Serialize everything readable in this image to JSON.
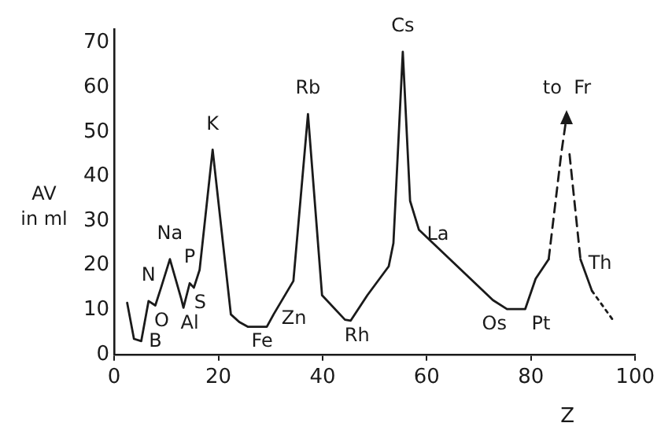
{
  "chart_data": {
    "type": "line",
    "xlabel": "Z",
    "ylabel": "AV in ml",
    "xlim": [
      0,
      100
    ],
    "ylim": [
      0,
      73
    ],
    "xticks": [
      0,
      20,
      40,
      60,
      80,
      100
    ],
    "yticks": [
      0,
      10,
      20,
      30,
      40,
      50,
      60,
      70
    ],
    "grid": false,
    "legend": false,
    "marker": "none",
    "series": [
      {
        "color": "#1a1a1a",
        "line_style": "solid",
        "x": [
          2.5,
          3.8,
          5.2,
          6.6,
          7.9,
          9,
          10.7,
          12.9,
          13.3,
          14.5,
          15.3,
          16.4,
          18.9,
          22.4,
          24,
          25.7,
          29.3,
          30.6,
          34.4,
          37.2,
          39.9,
          44.3,
          45.4,
          48.6,
          52.7,
          53.6,
          55.4,
          56.8,
          58.5,
          72.7,
          75.4,
          78.9,
          80.9,
          83.4
        ],
        "values": [
          11.6,
          3.5,
          3,
          12,
          11,
          15,
          21.4,
          12.4,
          10.5,
          16,
          15,
          19,
          46,
          9,
          7.3,
          6.2,
          6.2,
          9,
          16.5,
          54,
          13.3,
          7.8,
          7.6,
          13.3,
          19.8,
          25,
          68,
          34.5,
          28,
          12.2,
          10.2,
          10.2,
          17,
          21.4
        ]
      },
      {
        "color": "#1a1a1a",
        "line_style": "dashed",
        "x": [
          83.4,
          85.8,
          86.9
        ],
        "values": [
          21.4,
          45,
          54
        ]
      },
      {
        "color": "#1a1a1a",
        "line_style": "dashed",
        "x": [
          87.4,
          89.5
        ],
        "values": [
          45,
          21.4
        ]
      },
      {
        "color": "#1a1a1a",
        "line_style": "solid",
        "x": [
          89.5,
          91.7
        ],
        "values": [
          21.4,
          14.3
        ]
      },
      {
        "color": "#1a1a1a",
        "line_style": "dotted",
        "x": [
          91.7,
          96
        ],
        "values": [
          14.3,
          7.3
        ]
      }
    ],
    "annotations": [
      {
        "text": "Na",
        "x": 10.7,
        "y": 21.4
      },
      {
        "text": "N",
        "x": 6.6,
        "y": 12
      },
      {
        "text": "O",
        "x": 7.9,
        "y": 11
      },
      {
        "text": "Al",
        "x": 13.3,
        "y": 10.5
      },
      {
        "text": "B",
        "x": 5.2,
        "y": 3
      },
      {
        "text": "P",
        "x": 14.5,
        "y": 16
      },
      {
        "text": "S",
        "x": 15.3,
        "y": 15
      },
      {
        "text": "K",
        "x": 18.9,
        "y": 46
      },
      {
        "text": "Fe",
        "x": 25.7,
        "y": 6.2
      },
      {
        "text": "Zn",
        "x": 30.6,
        "y": 9
      },
      {
        "text": "Rb",
        "x": 37.2,
        "y": 54
      },
      {
        "text": "Rh",
        "x": 45.4,
        "y": 7.6
      },
      {
        "text": "Cs",
        "x": 55.4,
        "y": 68
      },
      {
        "text": "La",
        "x": 58.5,
        "y": 28
      },
      {
        "text": "Os",
        "x": 75.4,
        "y": 10.2
      },
      {
        "text": "Pt",
        "x": 78.9,
        "y": 10.2
      },
      {
        "text": "to  Fr",
        "x": 86.9,
        "y": 54
      },
      {
        "text": "Th",
        "x": 89.5,
        "y": 21.4
      }
    ]
  }
}
